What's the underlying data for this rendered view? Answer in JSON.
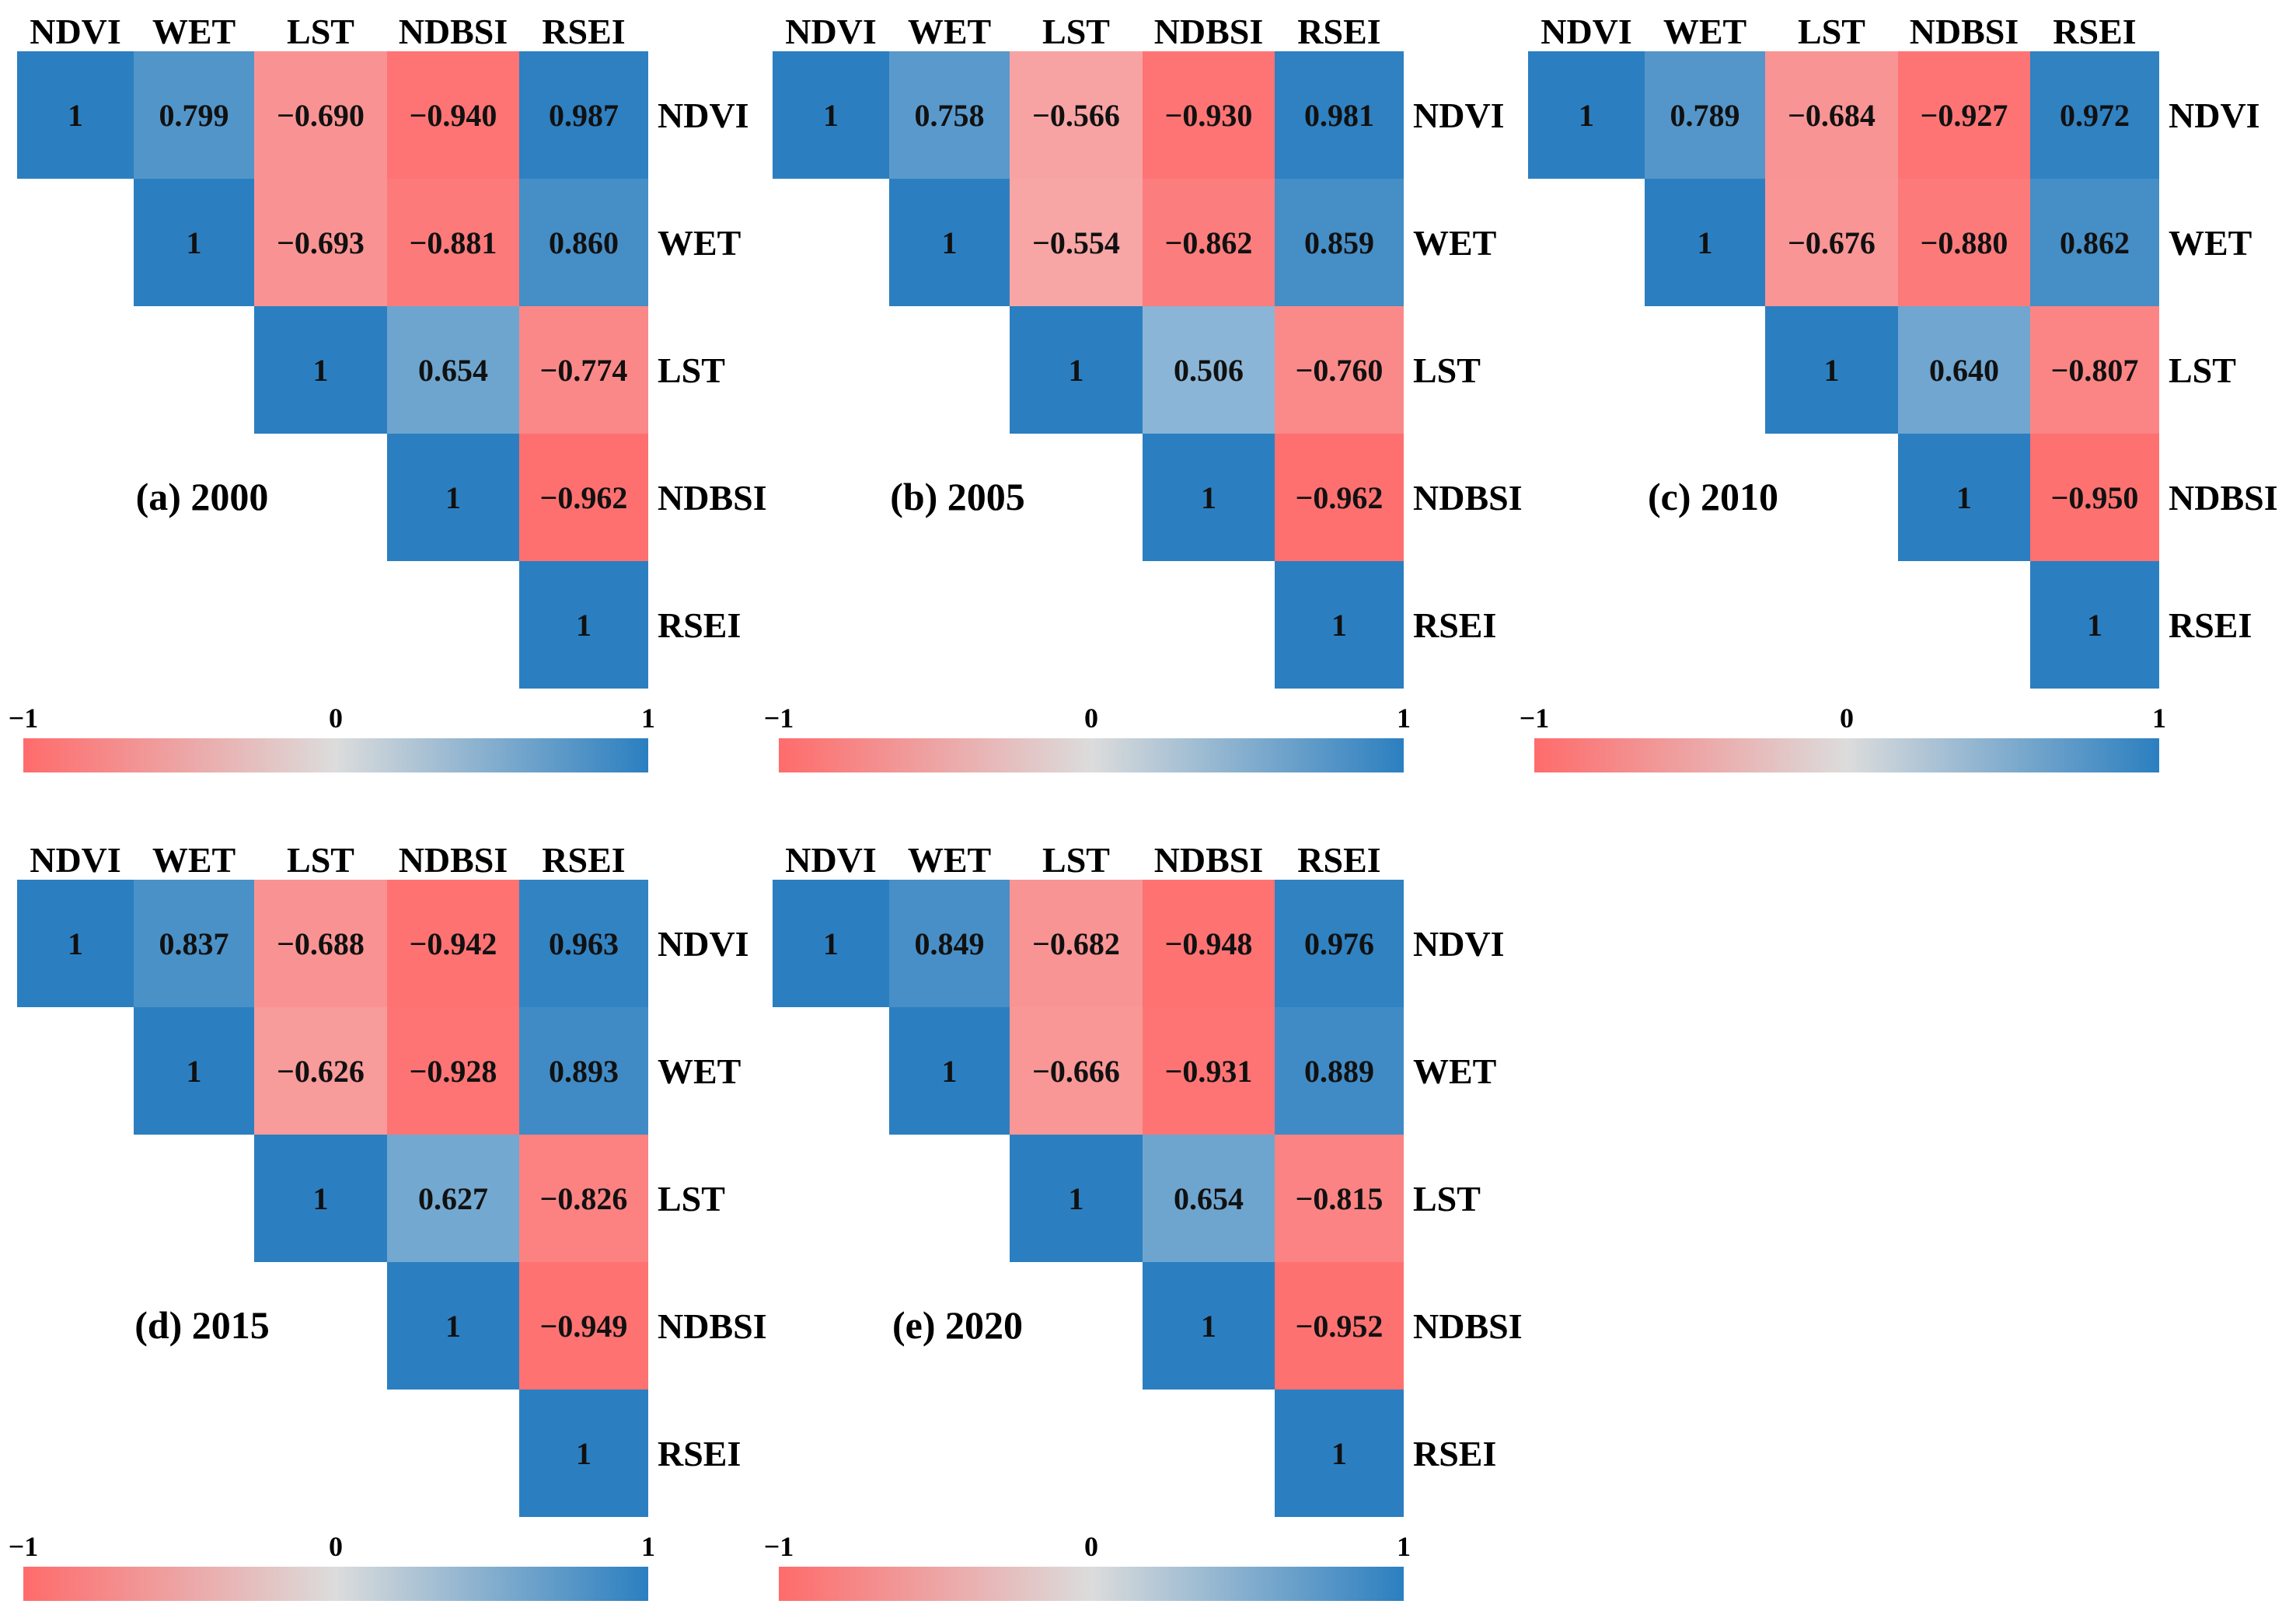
{
  "figure": {
    "colors": {
      "negative": "#ff6b6b",
      "neutral": "#dcdcdc",
      "positive": "#2b7fc0"
    }
  },
  "chart_data": [
    {
      "type": "heatmap",
      "title": "(a) 2000",
      "variables": [
        "NDVI",
        "WET",
        "LST",
        "NDBSI",
        "RSEI"
      ],
      "matrix": [
        [
          1,
          0.799,
          -0.69,
          -0.94,
          0.987
        ],
        [
          null,
          1,
          -0.693,
          -0.881,
          0.86
        ],
        [
          null,
          null,
          1,
          0.654,
          -0.774
        ],
        [
          null,
          null,
          null,
          1,
          -0.962
        ],
        [
          null,
          null,
          null,
          null,
          1
        ]
      ],
      "value_labels": [
        [
          "1",
          "0.799",
          "−0.690",
          "−0.940",
          "0.987"
        ],
        [
          null,
          "1",
          "−0.693",
          "−0.881",
          "0.860"
        ],
        [
          null,
          null,
          "1",
          "0.654",
          "−0.774"
        ],
        [
          null,
          null,
          null,
          "1",
          "−0.962"
        ],
        [
          null,
          null,
          null,
          null,
          "1"
        ]
      ],
      "colorbar": {
        "range": [
          -1,
          1
        ],
        "tick_labels": [
          "−1",
          "0",
          "1"
        ]
      }
    },
    {
      "type": "heatmap",
      "title": "(b) 2005",
      "variables": [
        "NDVI",
        "WET",
        "LST",
        "NDBSI",
        "RSEI"
      ],
      "matrix": [
        [
          1,
          0.758,
          -0.566,
          -0.93,
          0.981
        ],
        [
          null,
          1,
          -0.554,
          -0.862,
          0.859
        ],
        [
          null,
          null,
          1,
          0.506,
          -0.76
        ],
        [
          null,
          null,
          null,
          1,
          -0.962
        ],
        [
          null,
          null,
          null,
          null,
          1
        ]
      ],
      "value_labels": [
        [
          "1",
          "0.758",
          "−0.566",
          "−0.930",
          "0.981"
        ],
        [
          null,
          "1",
          "−0.554",
          "−0.862",
          "0.859"
        ],
        [
          null,
          null,
          "1",
          "0.506",
          "−0.760"
        ],
        [
          null,
          null,
          null,
          "1",
          "−0.962"
        ],
        [
          null,
          null,
          null,
          null,
          "1"
        ]
      ],
      "colorbar": {
        "range": [
          -1,
          1
        ],
        "tick_labels": [
          "−1",
          "0",
          "1"
        ]
      }
    },
    {
      "type": "heatmap",
      "title": "(c) 2010",
      "variables": [
        "NDVI",
        "WET",
        "LST",
        "NDBSI",
        "RSEI"
      ],
      "matrix": [
        [
          1,
          0.789,
          -0.684,
          -0.927,
          0.972
        ],
        [
          null,
          1,
          -0.676,
          -0.88,
          0.862
        ],
        [
          null,
          null,
          1,
          0.64,
          -0.807
        ],
        [
          null,
          null,
          null,
          1,
          -0.95
        ],
        [
          null,
          null,
          null,
          null,
          1
        ]
      ],
      "value_labels": [
        [
          "1",
          "0.789",
          "−0.684",
          "−0.927",
          "0.972"
        ],
        [
          null,
          "1",
          "−0.676",
          "−0.880",
          "0.862"
        ],
        [
          null,
          null,
          "1",
          "0.640",
          "−0.807"
        ],
        [
          null,
          null,
          null,
          "1",
          "−0.950"
        ],
        [
          null,
          null,
          null,
          null,
          "1"
        ]
      ],
      "colorbar": {
        "range": [
          -1,
          1
        ],
        "tick_labels": [
          "−1",
          "0",
          "1"
        ]
      }
    },
    {
      "type": "heatmap",
      "title": "(d) 2015",
      "variables": [
        "NDVI",
        "WET",
        "LST",
        "NDBSI",
        "RSEI"
      ],
      "matrix": [
        [
          1,
          0.837,
          -0.688,
          -0.942,
          0.963
        ],
        [
          null,
          1,
          -0.626,
          -0.928,
          0.893
        ],
        [
          null,
          null,
          1,
          0.627,
          -0.826
        ],
        [
          null,
          null,
          null,
          1,
          -0.949
        ],
        [
          null,
          null,
          null,
          null,
          1
        ]
      ],
      "value_labels": [
        [
          "1",
          "0.837",
          "−0.688",
          "−0.942",
          "0.963"
        ],
        [
          null,
          "1",
          "−0.626",
          "−0.928",
          "0.893"
        ],
        [
          null,
          null,
          "1",
          "0.627",
          "−0.826"
        ],
        [
          null,
          null,
          null,
          "1",
          "−0.949"
        ],
        [
          null,
          null,
          null,
          null,
          "1"
        ]
      ],
      "colorbar": {
        "range": [
          -1,
          1
        ],
        "tick_labels": [
          "−1",
          "0",
          "1"
        ]
      }
    },
    {
      "type": "heatmap",
      "title": "(e) 2020",
      "variables": [
        "NDVI",
        "WET",
        "LST",
        "NDBSI",
        "RSEI"
      ],
      "matrix": [
        [
          1,
          0.849,
          -0.682,
          -0.948,
          0.976
        ],
        [
          null,
          1,
          -0.666,
          -0.931,
          0.889
        ],
        [
          null,
          null,
          1,
          0.654,
          -0.815
        ],
        [
          null,
          null,
          null,
          1,
          -0.952
        ],
        [
          null,
          null,
          null,
          null,
          1
        ]
      ],
      "value_labels": [
        [
          "1",
          "0.849",
          "−0.682",
          "−0.948",
          "0.976"
        ],
        [
          null,
          "1",
          "−0.666",
          "−0.931",
          "0.889"
        ],
        [
          null,
          null,
          "1",
          "0.654",
          "−0.815"
        ],
        [
          null,
          null,
          null,
          "1",
          "−0.952"
        ],
        [
          null,
          null,
          null,
          null,
          "1"
        ]
      ],
      "colorbar": {
        "range": [
          -1,
          1
        ],
        "tick_labels": [
          "−1",
          "0",
          "1"
        ]
      }
    }
  ]
}
